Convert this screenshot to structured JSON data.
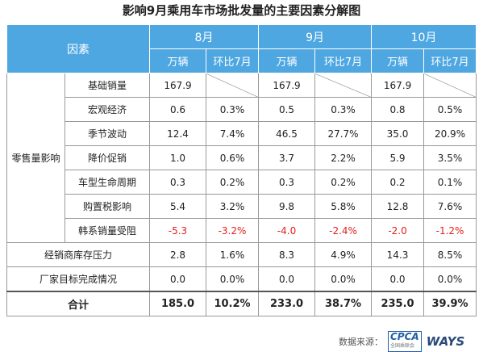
{
  "title": "影响9月乘用车市场批发量的主要因素分解图",
  "table": {
    "header": {
      "factor": "因素",
      "months": [
        "8月",
        "9月",
        "10月"
      ],
      "subheaders": [
        "万辆",
        "环比7月",
        "万辆",
        "环比7月",
        "万辆",
        "环比7月"
      ]
    },
    "groups": [
      {
        "label": "零售量影响",
        "rows": [
          {
            "label": "基础销量",
            "cells": [
              "167.9",
              null,
              "167.9",
              null,
              "167.9",
              null
            ]
          },
          {
            "label": "宏观经济",
            "cells": [
              "0.6",
              "0.3%",
              "0.5",
              "0.3%",
              "0.8",
              "0.5%"
            ]
          },
          {
            "label": "季节波动",
            "cells": [
              "12.4",
              "7.4%",
              "46.5",
              "27.7%",
              "35.0",
              "20.9%"
            ]
          },
          {
            "label": "降价促销",
            "cells": [
              "1.0",
              "0.6%",
              "3.7",
              "2.2%",
              "5.9",
              "3.5%"
            ]
          },
          {
            "label": "车型生命周期",
            "cells": [
              "0.3",
              "0.2%",
              "0.3",
              "0.2%",
              "0.2",
              "0.1%"
            ]
          },
          {
            "label": "购置税影响",
            "cells": [
              "5.4",
              "3.2%",
              "9.8",
              "5.8%",
              "12.8",
              "7.6%"
            ]
          },
          {
            "label": "韩系销量受阻",
            "cells": [
              "-5.3",
              "-3.2%",
              "-4.0",
              "-2.4%",
              "-2.0",
              "-1.2%"
            ],
            "color": "#e0201c"
          }
        ]
      }
    ],
    "rows": [
      {
        "label": "经销商库存压力",
        "cells": [
          "2.8",
          "1.6%",
          "8.3",
          "4.9%",
          "14.3",
          "8.5%"
        ]
      },
      {
        "label": "厂家目标完成情况",
        "cells": [
          "0.0",
          "0.0%",
          "0.0",
          "0.0%",
          "0.0",
          "0.0%"
        ]
      }
    ],
    "total": {
      "label": "合计",
      "cells": [
        "185.0",
        "10.2%",
        "233.0",
        "38.7%",
        "235.0",
        "39.9%"
      ]
    }
  },
  "footer": {
    "source": "数据来源：",
    "logo1": "CPCA",
    "logo1_sub": "全国乘联会",
    "logo2": "WAYS"
  }
}
